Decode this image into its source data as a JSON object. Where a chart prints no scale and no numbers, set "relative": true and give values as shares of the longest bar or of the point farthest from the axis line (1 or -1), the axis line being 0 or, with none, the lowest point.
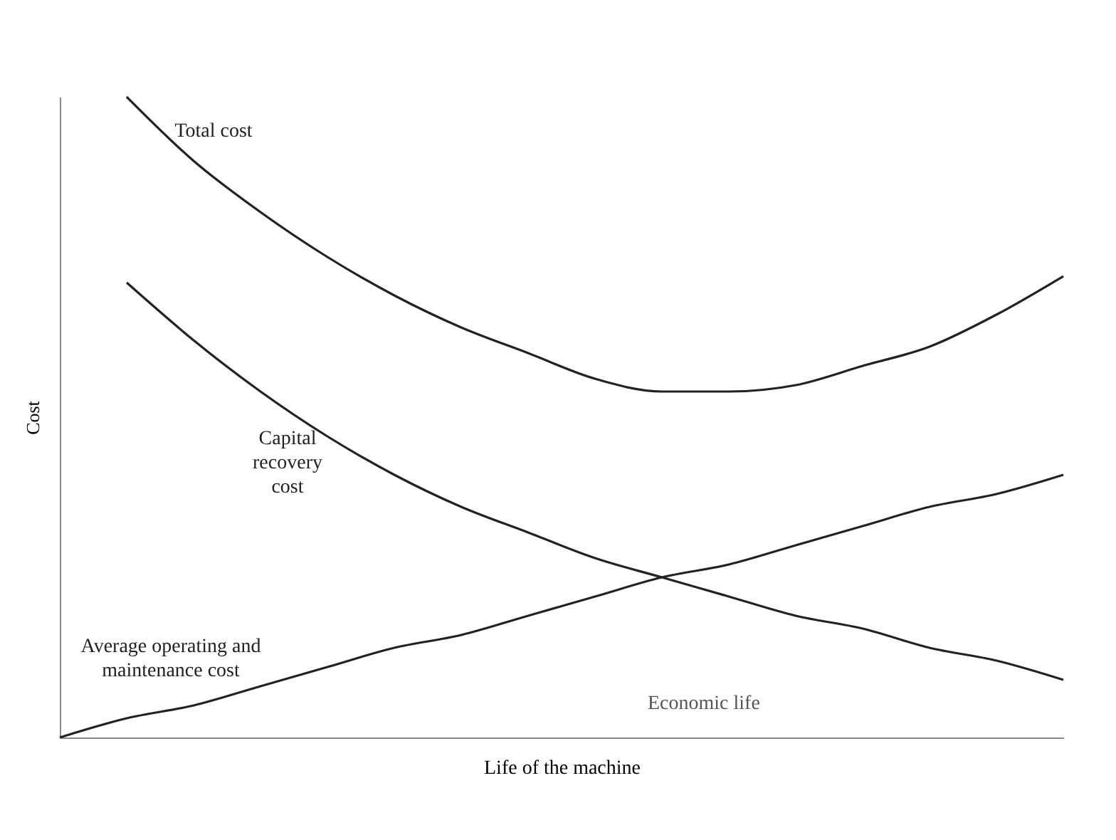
{
  "chart_data": {
    "type": "line",
    "relative": true,
    "xlabel": "Life of the machine",
    "ylabel": "Cost",
    "categories": [
      null,
      null,
      null,
      null,
      null,
      null,
      null,
      null,
      null,
      null,
      null,
      null,
      null,
      null,
      null,
      null
    ],
    "series": [
      {
        "name": "Total cost",
        "color": "#222222",
        "values": [
          null,
          1.0,
          0.9,
          0.82,
          0.75,
          0.69,
          0.64,
          0.6,
          0.56,
          0.54,
          0.54,
          0.55,
          0.58,
          0.61,
          0.66,
          0.72
        ]
      },
      {
        "name": "Capital recovery cost",
        "color": "#222222",
        "values": [
          null,
          0.71,
          0.62,
          0.54,
          0.47,
          0.41,
          0.36,
          0.32,
          0.28,
          0.25,
          0.22,
          0.19,
          0.17,
          0.14,
          0.12,
          0.09
        ]
      },
      {
        "name": "Average operating and maintenance cost",
        "color": "#222222",
        "values": [
          0,
          0.03,
          0.05,
          0.08,
          0.11,
          0.14,
          0.16,
          0.19,
          0.22,
          0.25,
          0.27,
          0.3,
          0.33,
          0.36,
          0.38,
          0.41
        ]
      }
    ],
    "annotations": [
      "Economic life"
    ],
    "legend": false,
    "grid": false,
    "marker": "none",
    "line_style": "solid",
    "tick_labels": false
  }
}
